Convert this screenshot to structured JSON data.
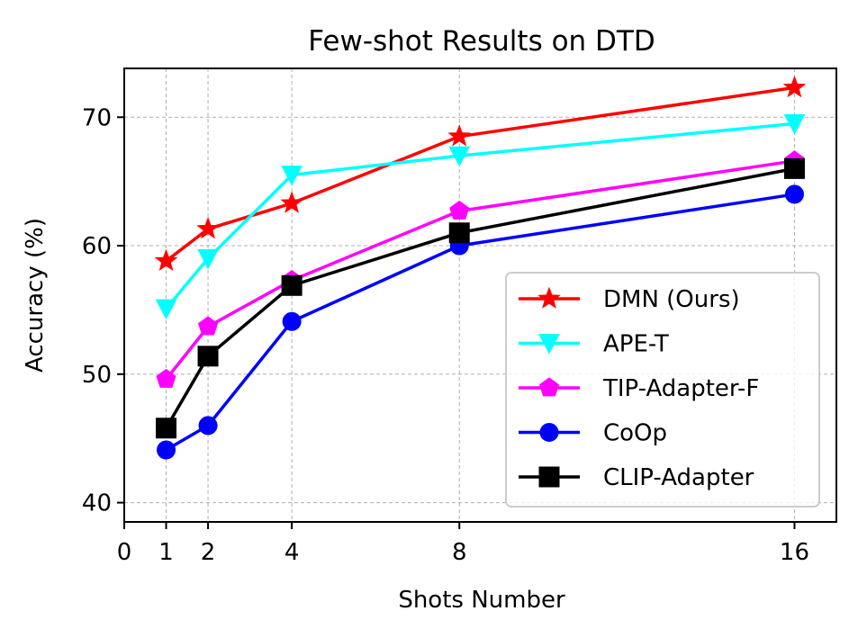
{
  "chart_data": {
    "type": "line",
    "title": "Few-shot Results on DTD",
    "xlabel": "Shots Number",
    "ylabel": "Accuracy (%)",
    "x": [
      1,
      2,
      4,
      8,
      16
    ],
    "xticks": [
      0,
      1,
      2,
      4,
      8,
      16
    ],
    "yticks": [
      40,
      50,
      60,
      70
    ],
    "xlim": [
      0,
      17
    ],
    "ylim": [
      38.5,
      73.8
    ],
    "grid": true,
    "legend_position": "bottom-right",
    "series": [
      {
        "name": "DMN (Ours)",
        "color": "#ff0000",
        "marker": "star",
        "values": [
          58.8,
          61.3,
          63.3,
          68.5,
          72.3
        ]
      },
      {
        "name": "APE-T",
        "color": "#00ffff",
        "marker": "triangle-down",
        "values": [
          55.1,
          59.0,
          65.5,
          67.0,
          69.5
        ]
      },
      {
        "name": "TIP-Adapter-F",
        "color": "#ff00ff",
        "marker": "pentagon",
        "values": [
          49.6,
          53.7,
          57.3,
          62.7,
          66.6
        ]
      },
      {
        "name": "CoOp",
        "color": "#0000ff",
        "marker": "circle",
        "values": [
          44.1,
          46.0,
          54.1,
          60.0,
          64.0
        ]
      },
      {
        "name": "CLIP-Adapter",
        "color": "#000000",
        "marker": "square",
        "values": [
          45.8,
          51.4,
          56.9,
          61.0,
          66.0
        ]
      }
    ]
  }
}
